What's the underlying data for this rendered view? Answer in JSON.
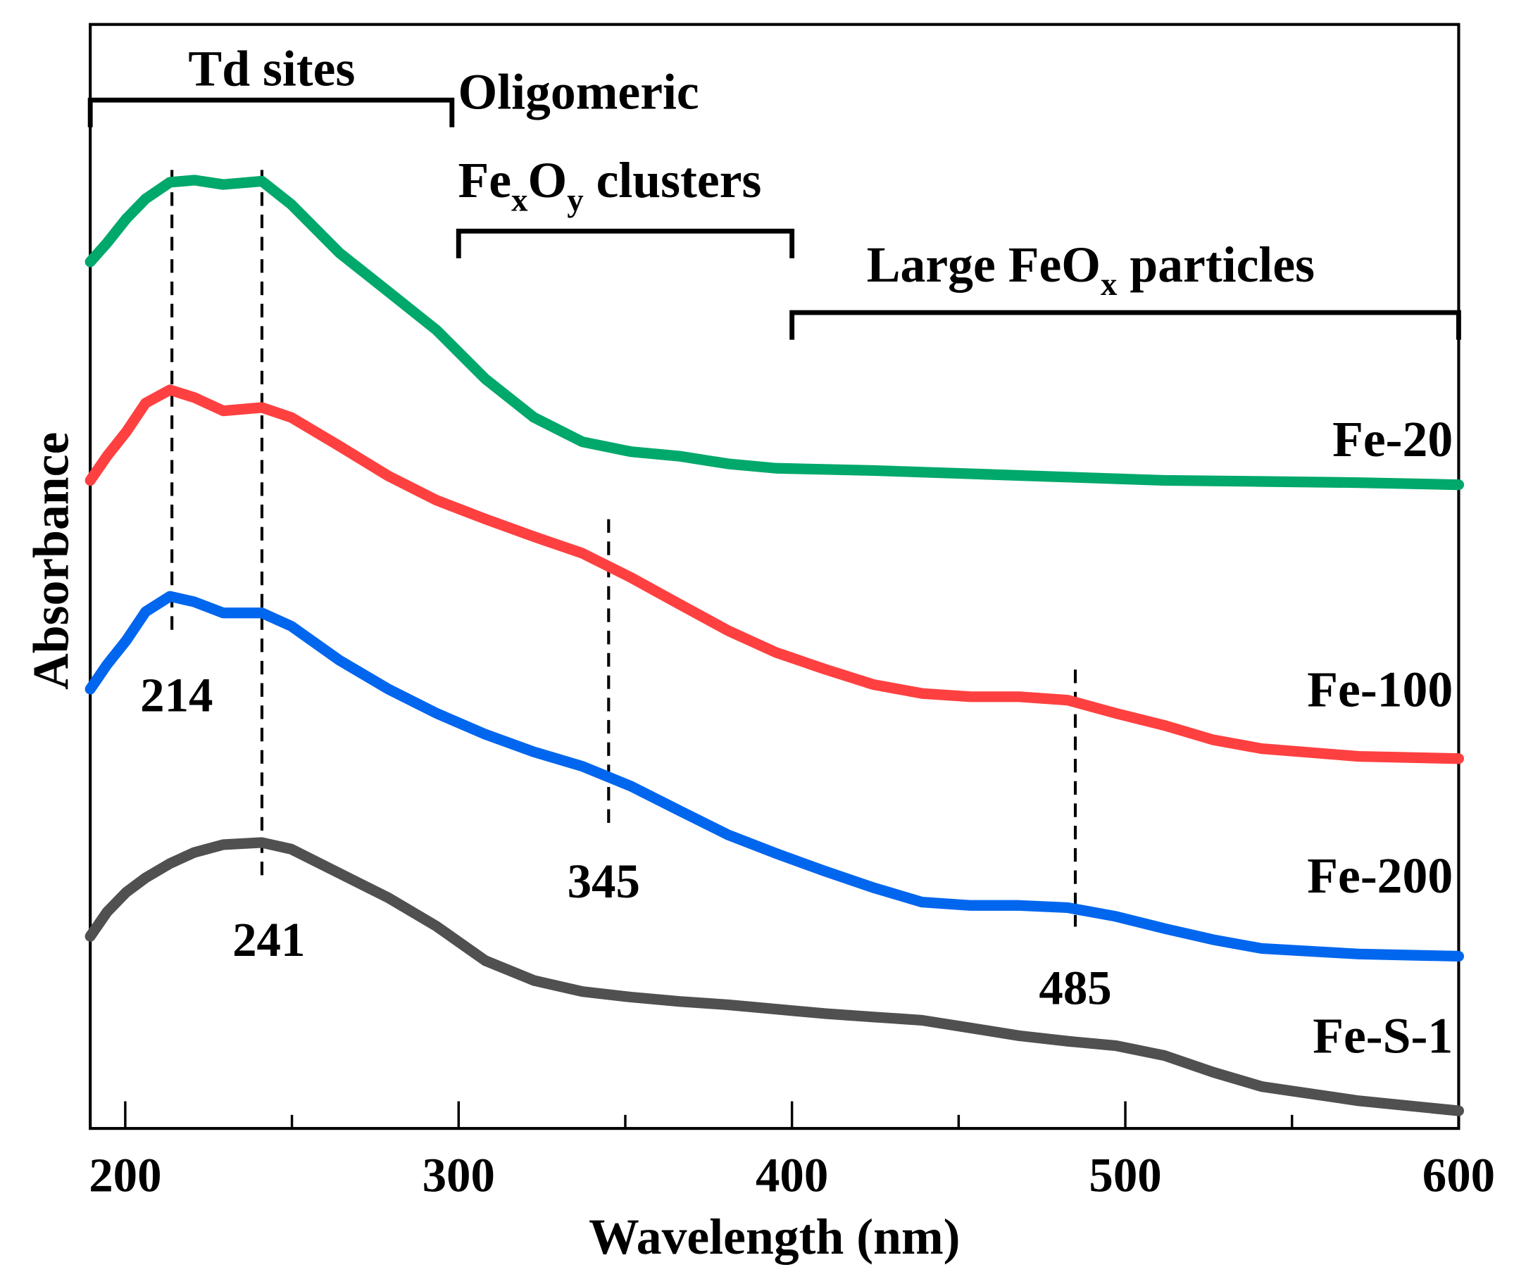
{
  "chart_data": {
    "type": "line",
    "xlabel": "Wavelength (nm)",
    "ylabel": "Absorbance",
    "xlim": [
      189.5,
      600
    ],
    "ylim": [
      0,
      1
    ],
    "x_ticks": [
      200,
      300,
      400,
      500,
      600
    ],
    "x_minor_ticks": [
      250,
      350,
      450,
      550
    ],
    "y_ticks": [],
    "grid": false,
    "legend": "none (series labeled at right end of curves)",
    "series": [
      {
        "name": "Fe-20",
        "color": "#00a86b",
        "x": [
          189.5,
          194.5,
          200.3,
          206.1,
          213.4,
          220.7,
          229.4,
          241,
          249.8,
          264.3,
          278.9,
          293.4,
          308,
          322.6,
          337.1,
          351.7,
          366.2,
          380.8,
          395.3,
          424.5,
          453.6,
          482.7,
          511.8,
          540.9,
          570,
          600
        ],
        "y": [
          0.785,
          0.802,
          0.824,
          0.842,
          0.857,
          0.859,
          0.855,
          0.858,
          0.837,
          0.793,
          0.758,
          0.723,
          0.679,
          0.644,
          0.622,
          0.613,
          0.609,
          0.602,
          0.598,
          0.596,
          0.593,
          0.59,
          0.587,
          0.586,
          0.585,
          0.583
        ]
      },
      {
        "name": "Fe-100",
        "color": "#ff4040",
        "x": [
          189.5,
          194.5,
          200.3,
          206.1,
          213.4,
          220.7,
          229.4,
          241,
          249.8,
          264.3,
          278.9,
          293.4,
          308,
          322.6,
          337.1,
          351.7,
          366.2,
          380.8,
          395.3,
          409.9,
          424.5,
          439,
          453.6,
          468.1,
          482.7,
          497.2,
          511.8,
          526.3,
          540.9,
          570,
          600
        ],
        "y": [
          0.587,
          0.609,
          0.631,
          0.657,
          0.669,
          0.662,
          0.65,
          0.653,
          0.644,
          0.618,
          0.591,
          0.569,
          0.552,
          0.536,
          0.521,
          0.499,
          0.475,
          0.451,
          0.431,
          0.416,
          0.402,
          0.394,
          0.391,
          0.391,
          0.388,
          0.376,
          0.365,
          0.352,
          0.344,
          0.337,
          0.335
        ]
      },
      {
        "name": "Fe-200",
        "color": "#0066ee",
        "x": [
          189.5,
          194.5,
          200.3,
          206.1,
          213.4,
          220.7,
          229.4,
          241,
          249.8,
          264.3,
          278.9,
          293.4,
          308,
          322.6,
          337.1,
          351.7,
          366.2,
          380.8,
          395.3,
          409.9,
          424.5,
          439,
          453.6,
          468.1,
          482.7,
          497.2,
          511.8,
          526.3,
          540.9,
          570,
          600
        ],
        "y": [
          0.398,
          0.42,
          0.442,
          0.468,
          0.482,
          0.477,
          0.467,
          0.467,
          0.455,
          0.424,
          0.398,
          0.376,
          0.357,
          0.341,
          0.328,
          0.31,
          0.288,
          0.266,
          0.249,
          0.233,
          0.218,
          0.205,
          0.202,
          0.202,
          0.2,
          0.192,
          0.181,
          0.171,
          0.163,
          0.158,
          0.156
        ]
      },
      {
        "name": "Fe-S-1",
        "color": "#505050",
        "x": [
          189.5,
          194.5,
          200.3,
          206.1,
          213.4,
          220.7,
          229.4,
          241,
          249.8,
          264.3,
          278.9,
          293.4,
          308,
          322.6,
          337.1,
          351.7,
          366.2,
          380.8,
          395.3,
          409.9,
          424.5,
          439,
          453.6,
          468.1,
          482.7,
          497.2,
          511.8,
          526.3,
          540.9,
          570,
          600
        ],
        "y": [
          0.174,
          0.196,
          0.214,
          0.227,
          0.24,
          0.25,
          0.257,
          0.259,
          0.253,
          0.231,
          0.209,
          0.183,
          0.152,
          0.134,
          0.124,
          0.119,
          0.115,
          0.112,
          0.108,
          0.104,
          0.101,
          0.098,
          0.091,
          0.084,
          0.079,
          0.075,
          0.066,
          0.051,
          0.038,
          0.025,
          0.016
        ]
      }
    ],
    "peak_markers": [
      {
        "label": "214",
        "x": 214
      },
      {
        "label": "241",
        "x": 241
      },
      {
        "label": "345",
        "x": 345
      },
      {
        "label": "485",
        "x": 485
      }
    ],
    "region_annotations": [
      {
        "label": "Td sites",
        "x_range": [
          189.5,
          298
        ]
      },
      {
        "label_main": "Oligomeric",
        "label_line2_prefix": "Fe",
        "sub1": "x",
        "mid": "O",
        "sub2": "y",
        "label_line2_suffix": " clusters",
        "x_range": [
          300,
          400
        ]
      },
      {
        "label_prefix": "Large FeO",
        "sub": "x",
        "label_suffix": " particles",
        "x_range": [
          400,
          600
        ]
      }
    ]
  }
}
